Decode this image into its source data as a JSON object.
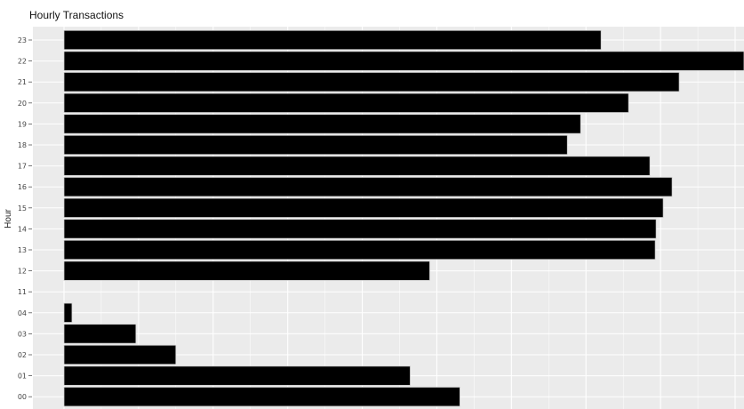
{
  "chart_data": {
    "type": "bar",
    "orientation": "horizontal",
    "title": "Hourly Transactions",
    "xlabel": "",
    "ylabel": "Hour",
    "categories": [
      "00",
      "01",
      "02",
      "03",
      "04",
      "11",
      "12",
      "13",
      "14",
      "15",
      "16",
      "17",
      "18",
      "19",
      "20",
      "21",
      "22",
      "23"
    ],
    "values": [
      446,
      390,
      126,
      81,
      9,
      0,
      412,
      666,
      667,
      675,
      685,
      660,
      567,
      582,
      636,
      693,
      766,
      605
    ],
    "xlim": [
      0,
      766
    ],
    "grid": true,
    "legend": "none",
    "colors": {
      "bar": "#000000",
      "panel": "#ebebeb",
      "grid": "#ffffff"
    }
  }
}
